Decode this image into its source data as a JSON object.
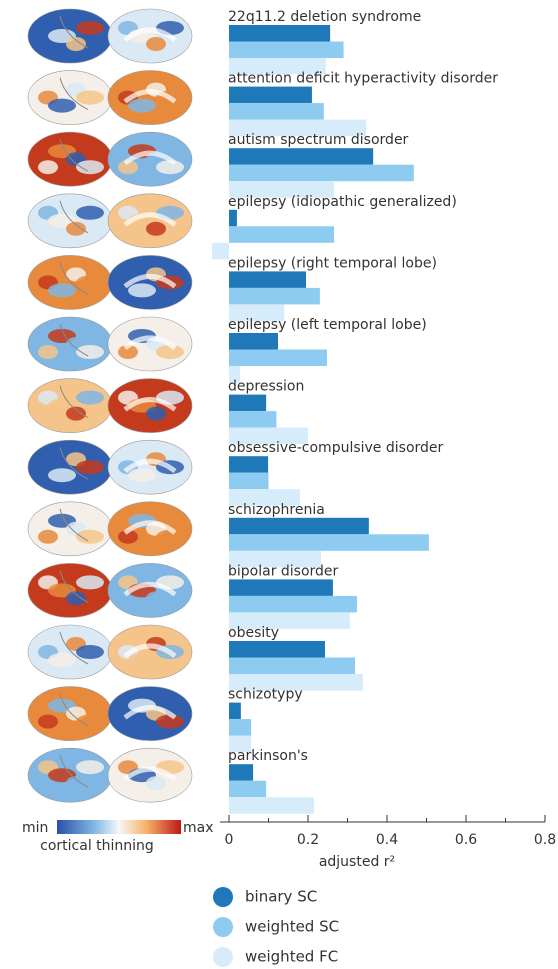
{
  "chart_data": {
    "type": "bar",
    "orientation": "horizontal",
    "categories": [
      "22q11.2 deletion syndrome",
      "attention deficit hyperactivity disorder",
      "autism spectrum disorder",
      "epilepsy (idiopathic generalized)",
      "epilepsy (right temporal lobe)",
      "epilepsy (left temporal lobe)",
      "depression",
      "obsessive-compulsive disorder",
      "schizophrenia",
      "bipolar disorder",
      "obesity",
      "schizotypy",
      "parkinson's"
    ],
    "series": [
      {
        "name": "binary SC",
        "color": "#1f78b8",
        "values": [
          0.256,
          0.21,
          0.365,
          0.02,
          0.195,
          0.124,
          0.094,
          0.099,
          0.354,
          0.263,
          0.243,
          0.03,
          0.061
        ]
      },
      {
        "name": "weighted SC",
        "color": "#8ecbf0",
        "values": [
          0.29,
          0.24,
          0.468,
          0.266,
          0.23,
          0.248,
          0.12,
          0.1,
          0.506,
          0.324,
          0.319,
          0.056,
          0.094
        ]
      },
      {
        "name": "weighted FC",
        "color": "#d6ecfa",
        "values": [
          0.245,
          0.347,
          0.266,
          -0.043,
          0.14,
          0.028,
          0.2,
          0.18,
          0.233,
          0.306,
          0.339,
          0.056,
          0.215
        ]
      }
    ],
    "xlim": [
      0,
      0.8
    ],
    "xticks": [
      0,
      0.2,
      0.4,
      0.6,
      0.8
    ],
    "xminorticks": [
      0.1,
      0.3,
      0.5,
      0.7
    ],
    "xlabel": "adjusted r²",
    "colorbar": {
      "min_label": "min",
      "max_label": "max",
      "label": "cortical thinning"
    }
  }
}
